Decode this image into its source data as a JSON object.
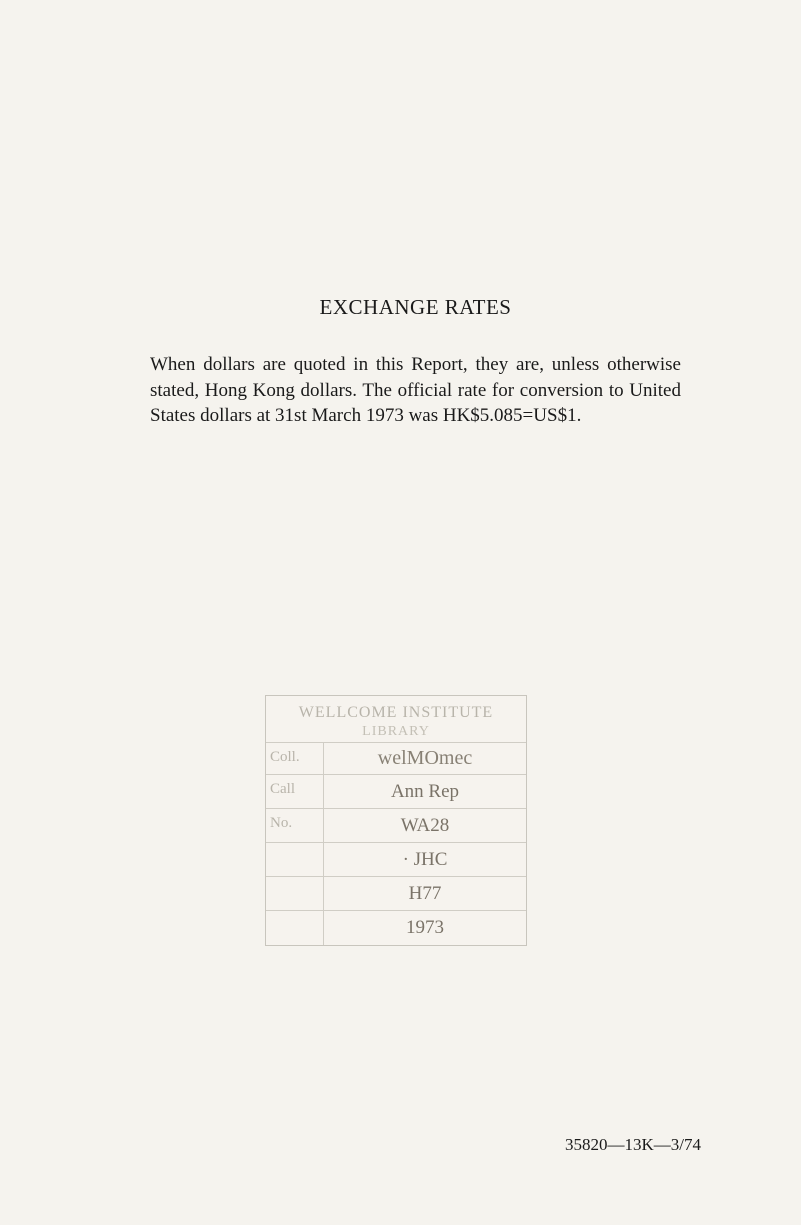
{
  "page": {
    "background_color": "#f5f3ee",
    "text_color": "#1a1a1a"
  },
  "title": "EXCHANGE RATES",
  "body": "When dollars are quoted in this Report, they are, unless otherwise stated, Hong Kong dollars. The official rate for conversion to United States dollars at 31st March 1973 was HK$5.085=US$1.",
  "stamp": {
    "header_line1": "WELLCOME INSTITUTE",
    "header_line2": "LIBRARY",
    "rows": [
      {
        "label": "Coll.",
        "value": "welMOmec"
      },
      {
        "label": "Call",
        "value": "Ann Rep"
      },
      {
        "label": "No.",
        "value": "WA28"
      },
      {
        "label": "",
        "value": "· JHC"
      },
      {
        "label": "",
        "value": "H77"
      },
      {
        "label": "",
        "value": "1973"
      }
    ],
    "border_color": "#c8c5bd",
    "label_color": "#b8b4aa",
    "value_color": "#7a7368"
  },
  "footer": "35820—13K—3/74"
}
